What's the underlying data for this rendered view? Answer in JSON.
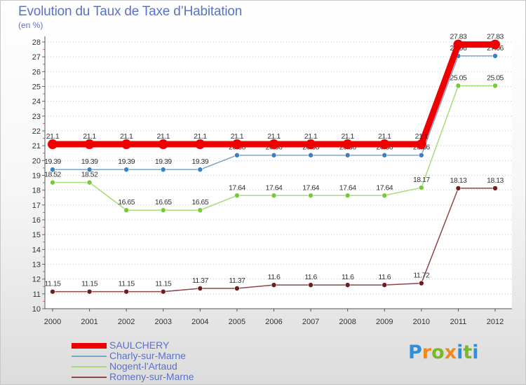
{
  "title": "Evolution du Taux de Taxe d’Habitation",
  "subtitle": "(en %)",
  "brand": {
    "letters": [
      {
        "ch": "P",
        "color": "#2f8fd8"
      },
      {
        "ch": "r",
        "color": "#f08a1c"
      },
      {
        "ch": "o",
        "color": "#7ab829"
      },
      {
        "ch": "x",
        "color": "#f08a1c"
      },
      {
        "ch": "i",
        "color": "#2f8fd8"
      },
      {
        "ch": "t",
        "color": "#7ab829"
      },
      {
        "ch": "i",
        "color": "#2f8fd8"
      }
    ]
  },
  "chart_data": {
    "type": "line",
    "title": "Evolution du Taux de Taxe d’Habitation",
    "ylabel": "(en %)",
    "xlabel": "",
    "x": [
      "2000",
      "2001",
      "2002",
      "2003",
      "2004",
      "2005",
      "2006",
      "2007",
      "2008",
      "2009",
      "2010",
      "2011",
      "2012"
    ],
    "ylim": [
      10,
      28
    ],
    "yticks": [
      10,
      11,
      12,
      13,
      14,
      15,
      16,
      17,
      18,
      19,
      20,
      21,
      22,
      23,
      24,
      25,
      26,
      27,
      28
    ],
    "grid": "horizontal dotted",
    "legend_position": "bottom-left",
    "series": [
      {
        "name": "SAULCHERY",
        "color": "#ee0000",
        "marker": "#ee0000",
        "values": [
          21.1,
          21.1,
          21.1,
          21.1,
          21.1,
          21.1,
          21.1,
          21.1,
          21.1,
          21.1,
          21.1,
          27.83,
          27.83
        ],
        "labels": [
          "21.1",
          "21.1",
          "21.1",
          "21.1",
          "21.1",
          "21.1",
          "21.1",
          "21.1",
          "21.1",
          "21.1",
          "21.1",
          "27.83",
          "27.83"
        ]
      },
      {
        "name": "Charly-sur-Marne",
        "color": "#7aa6cc",
        "marker": "#3c7fc0",
        "values": [
          19.39,
          19.39,
          19.39,
          19.39,
          19.39,
          20.36,
          20.36,
          20.36,
          20.36,
          20.36,
          20.36,
          27.06,
          27.06
        ],
        "labels": [
          "19.39",
          "19.39",
          "19.39",
          "19.39",
          "19.39",
          "20.36",
          "20.36",
          "20.36",
          "20.36",
          "20.36",
          "20.36",
          "27.06",
          "27.06"
        ]
      },
      {
        "name": "Nogent-l'Artaud",
        "color": "#a6dc78",
        "marker": "#78c83c",
        "values": [
          18.52,
          18.52,
          16.65,
          16.65,
          16.65,
          17.64,
          17.64,
          17.64,
          17.64,
          17.64,
          18.17,
          25.05,
          25.05
        ],
        "labels": [
          "18.52",
          "18.52",
          "16.65",
          "16.65",
          "16.65",
          "17.64",
          "17.64",
          "17.64",
          "17.64",
          "17.64",
          "18.17",
          "25.05",
          "25.05"
        ]
      },
      {
        "name": "Romeny-sur-Marne",
        "color": "#8c4646",
        "marker": "#6e1e1e",
        "values": [
          11.15,
          11.15,
          11.15,
          11.15,
          11.37,
          11.37,
          11.6,
          11.6,
          11.6,
          11.6,
          11.72,
          18.13,
          18.13
        ],
        "labels": [
          "11.15",
          "11.15",
          "11.15",
          "11.15",
          "11.37",
          "11.37",
          "11.6",
          "11.6",
          "11.6",
          "11.6",
          "11.72",
          "18.13",
          "18.13"
        ]
      }
    ]
  }
}
